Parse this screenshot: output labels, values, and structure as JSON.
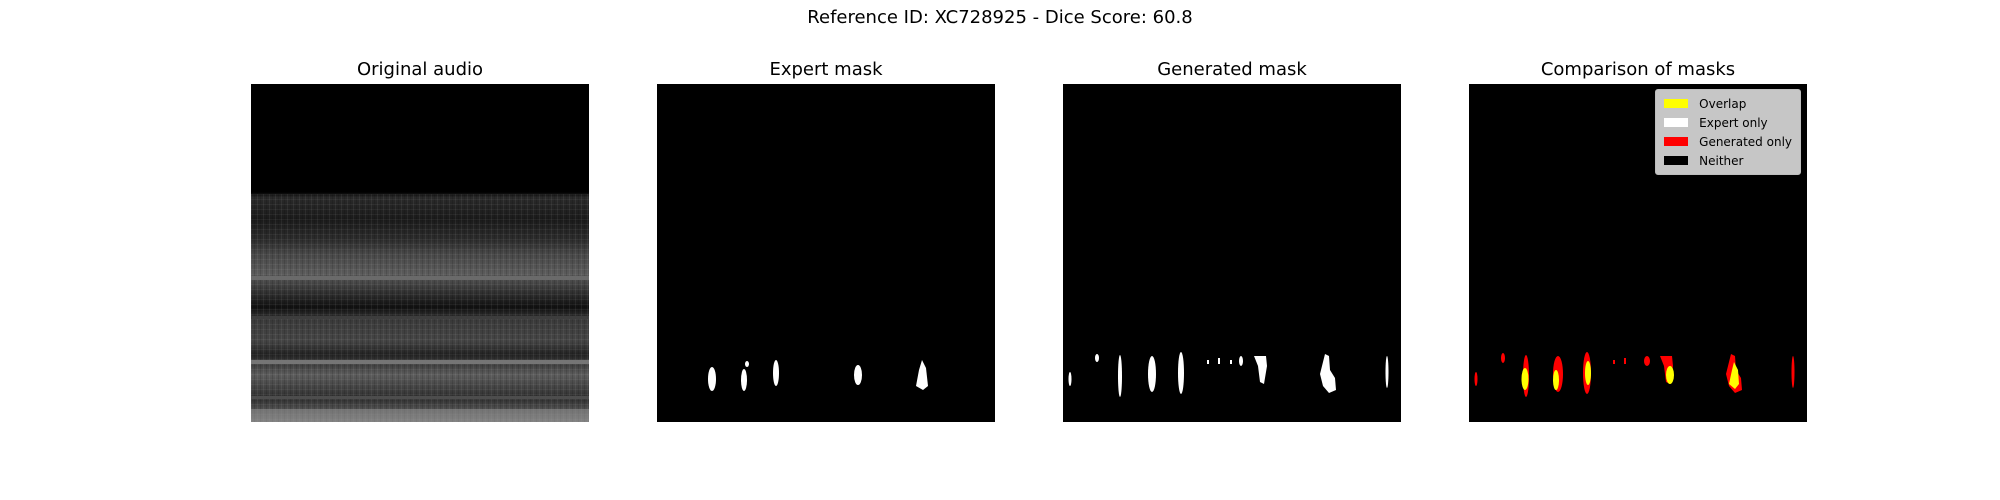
{
  "figure": {
    "suptitle": "Reference ID: XC728925 - Dice Score: 60.8"
  },
  "panels": [
    {
      "title": "Original audio"
    },
    {
      "title": "Expert mask"
    },
    {
      "title": "Generated mask"
    },
    {
      "title": "Comparison of masks"
    }
  ],
  "legend": {
    "items": [
      {
        "label": "Overlap",
        "color": "#ffff00"
      },
      {
        "label": "Expert only",
        "color": "#ffffff"
      },
      {
        "label": "Generated only",
        "color": "#ff0000"
      },
      {
        "label": "Neither",
        "color": "#000000"
      }
    ]
  }
}
